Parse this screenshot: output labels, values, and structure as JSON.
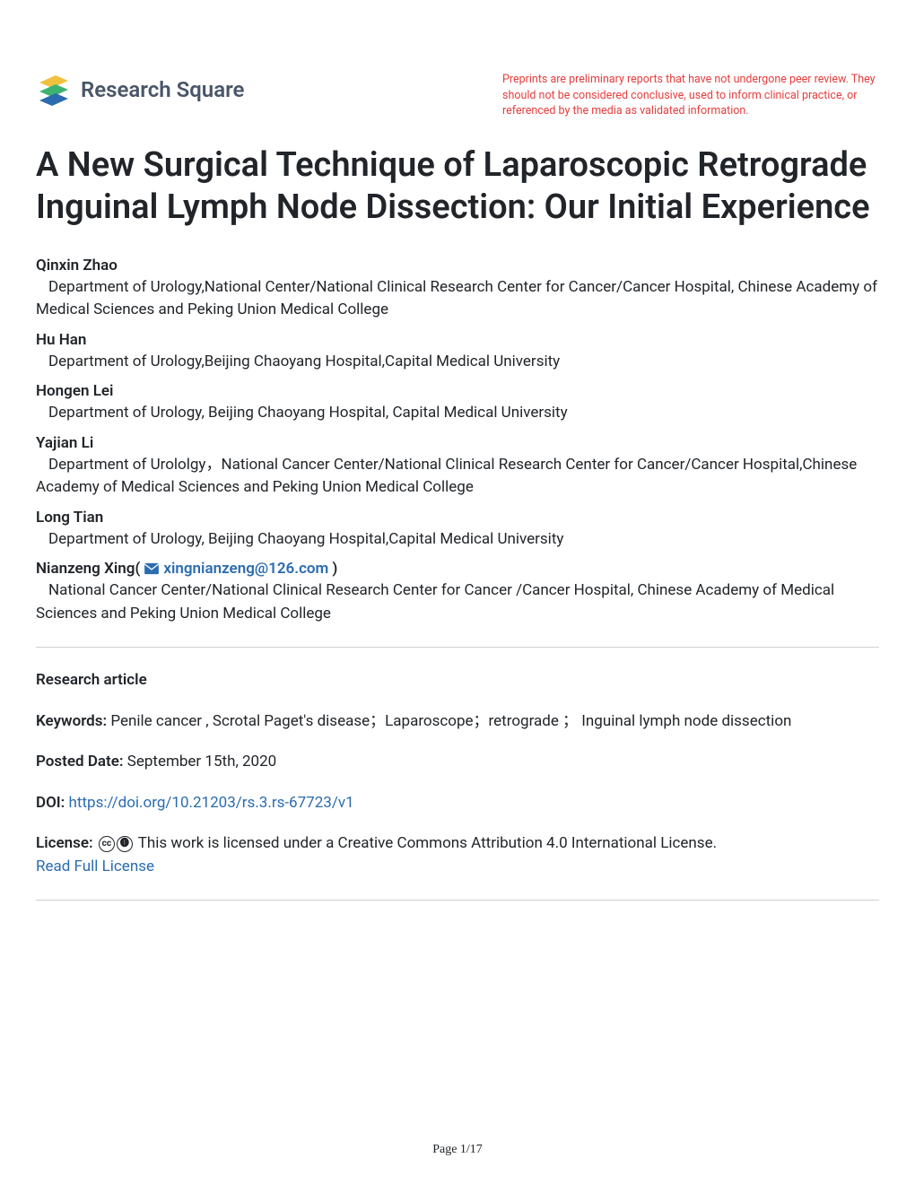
{
  "header": {
    "logo_text": "Research Square",
    "disclaimer": "Preprints are preliminary reports that have not undergone peer review. They should not be considered conclusive, used to inform clinical practice, or referenced by the media as validated information."
  },
  "title": "A New Surgical Technique of Laparoscopic Retrograde Inguinal Lymph Node Dissection: Our Initial Experience",
  "authors": [
    {
      "name": "Qinxin Zhao",
      "affiliation": "Department of Urology,National Center/National Clinical Research Center for Cancer/Cancer Hospital, Chinese Academy of Medical Sciences and Peking Union Medical College",
      "corresponding": false
    },
    {
      "name": "Hu Han",
      "affiliation": "Department of Urology,Beijing Chaoyang Hospital,Capital Medical University",
      "corresponding": false
    },
    {
      "name": "Hongen Lei",
      "affiliation": "Department of Urology, Beijing Chaoyang Hospital, Capital Medical University",
      "corresponding": false
    },
    {
      "name": "Yajian Li",
      "affiliation": "Department of Urololgy，National Cancer Center/National Clinical Research Center for Cancer/Cancer Hospital,Chinese Academy of Medical Sciences and Peking Union Medical College",
      "corresponding": false
    },
    {
      "name": "Long Tian",
      "affiliation": "Department of Urology, Beijing Chaoyang Hospital,Capital Medical University",
      "corresponding": false
    },
    {
      "name": "Nianzeng Xing",
      "affiliation": "National Cancer Center/National Clinical Research Center for Cancer /Cancer Hospital, Chinese Academy of Medical Sciences and Peking Union Medical College",
      "corresponding": true,
      "email": "xingnianzeng@126.com"
    }
  ],
  "article_type": "Research article",
  "keywords_label": "Keywords:",
  "keywords": "Penile cancer , Scrotal Paget's disease；Laparoscope；retrograde ； Inguinal lymph node dissection",
  "posted_label": "Posted Date:",
  "posted_date": "September 15th, 2020",
  "doi_label": "DOI:",
  "doi": "https://doi.org/10.21203/rs.3.rs-67723/v1",
  "license_label": "License:",
  "license_text": "This work is licensed under a Creative Commons Attribution 4.0 International License.",
  "license_link": "Read Full License",
  "page_number": "Page 1/17",
  "colors": {
    "text": "#212529",
    "link": "#2b6cb0",
    "disclaimer": "#e53e3e",
    "logo_accent1": "#3cb371",
    "logo_accent2": "#f0c040",
    "logo_accent3": "#2b6cb0",
    "divider": "#d0d0d0"
  }
}
